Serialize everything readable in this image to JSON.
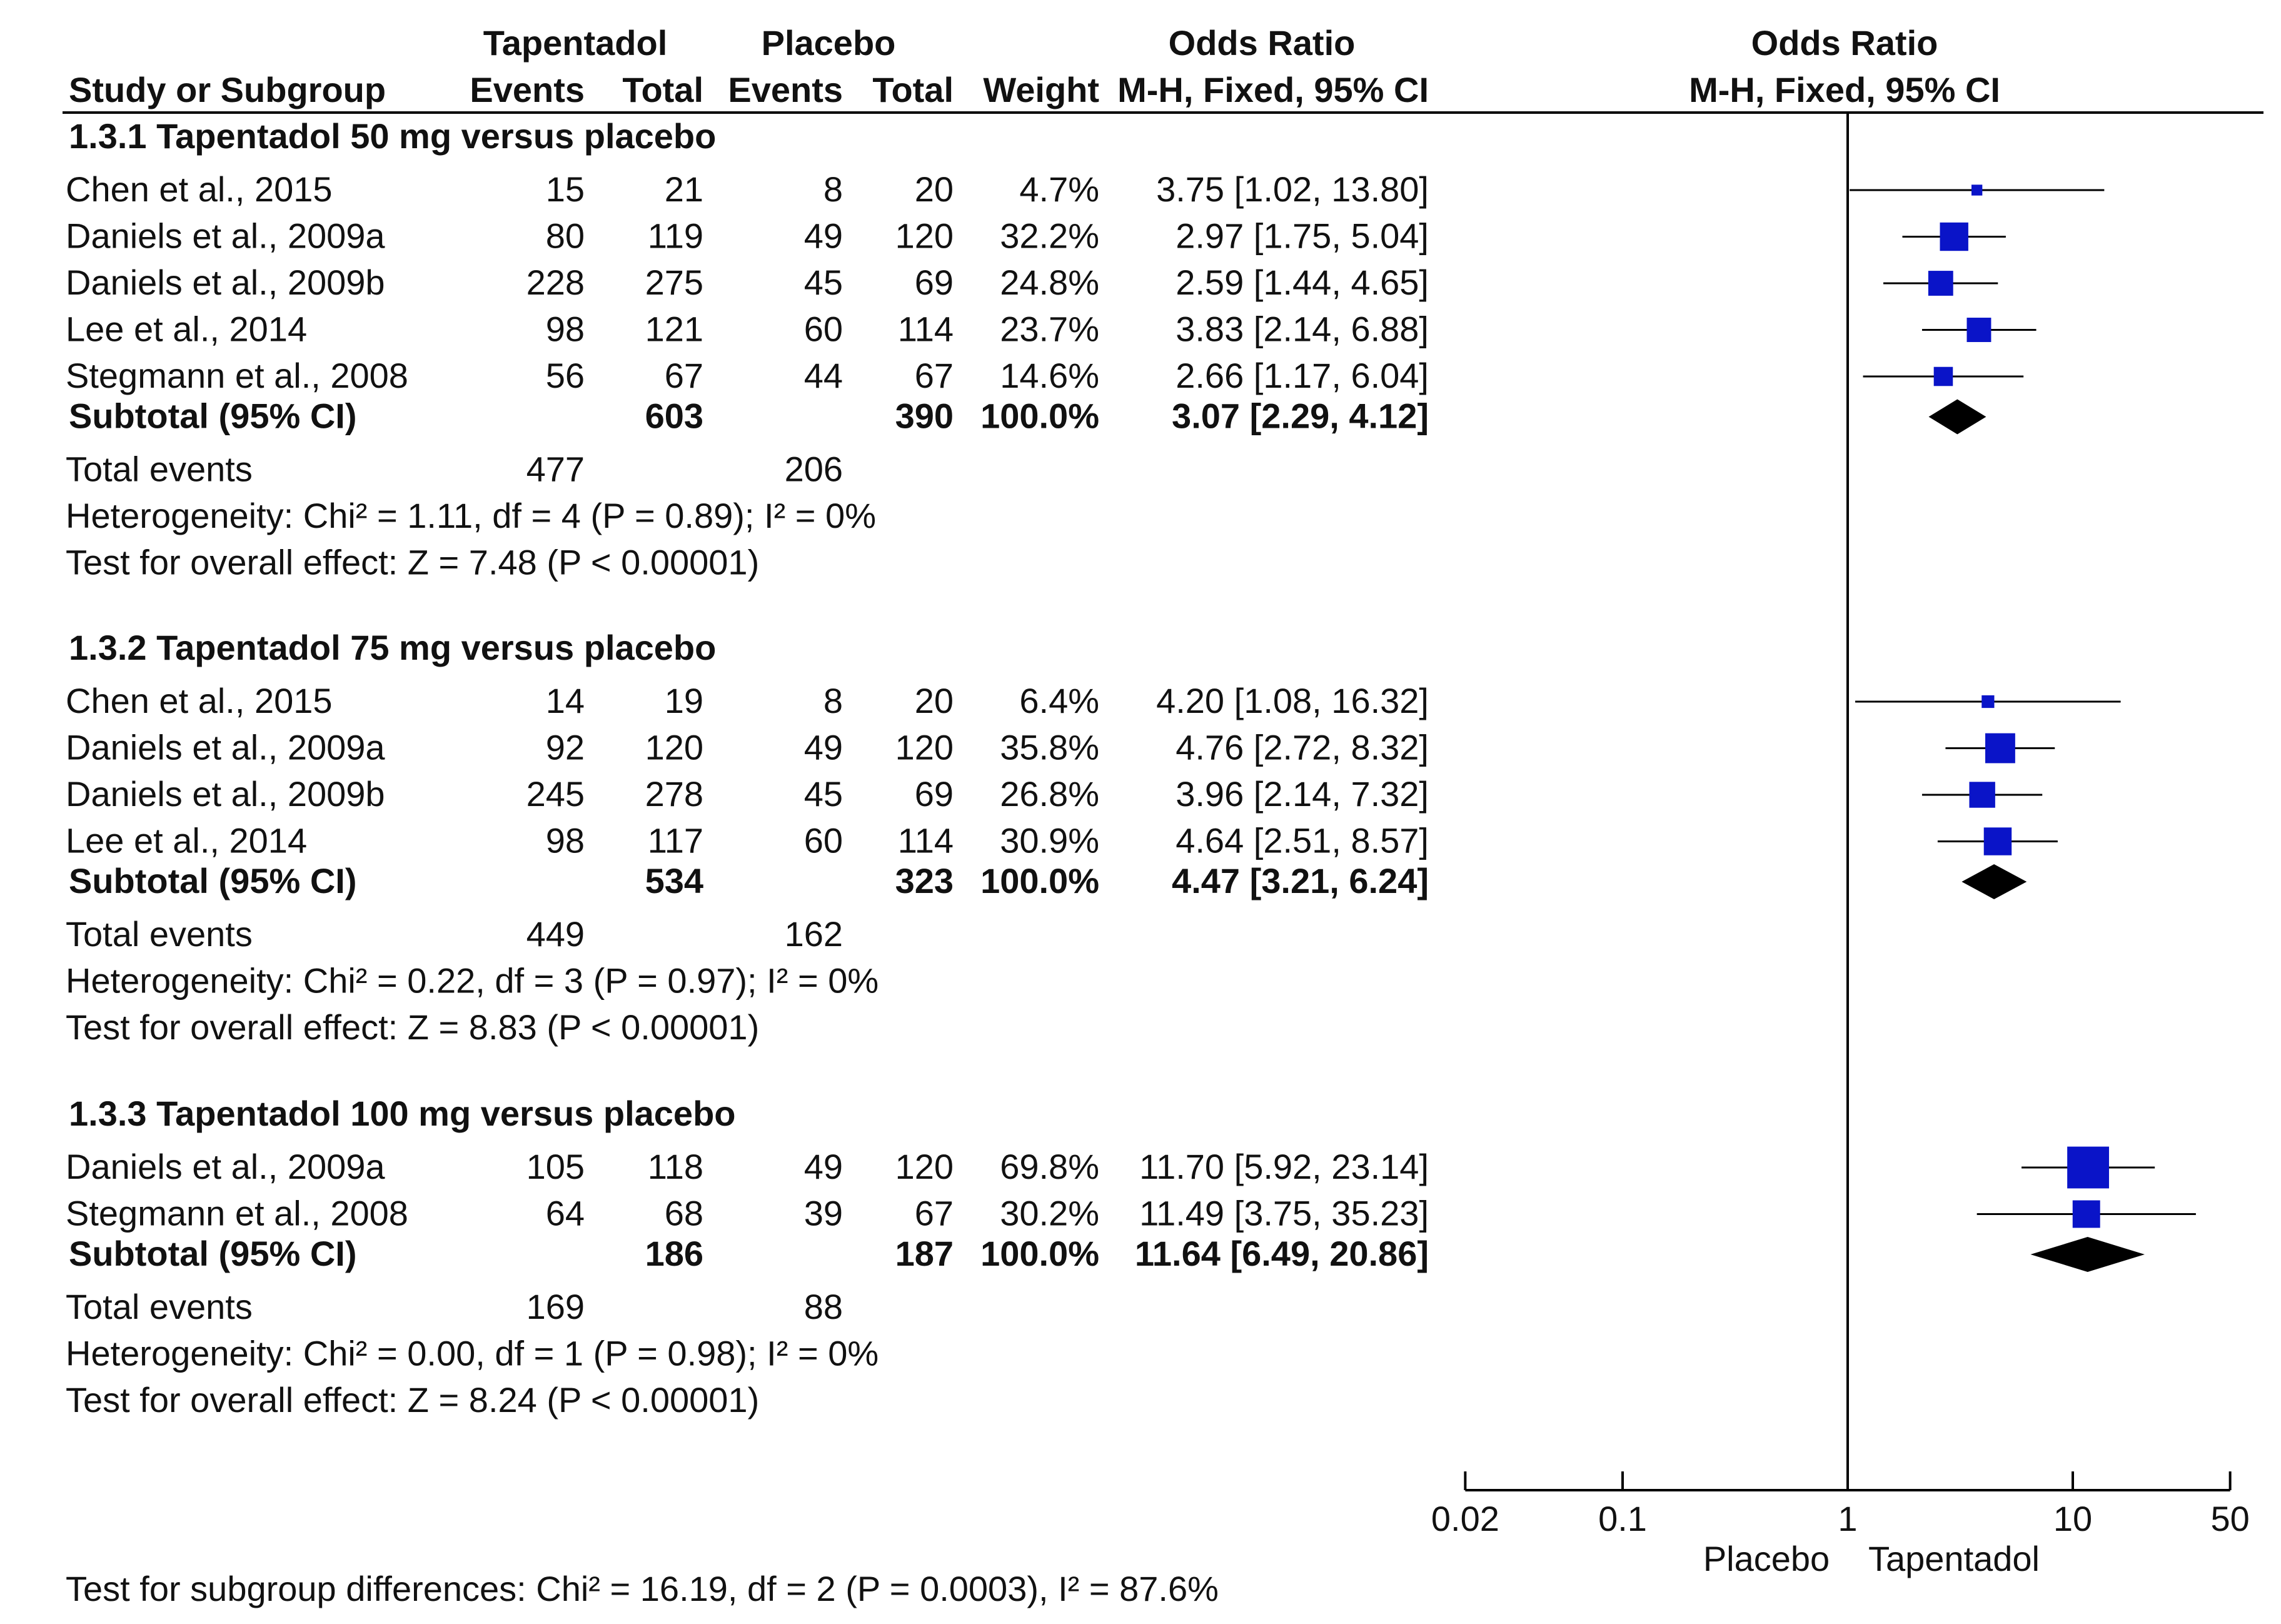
{
  "chart_data": {
    "type": "forest",
    "header": {
      "group1": "Tapentadol",
      "group2": "Placebo",
      "or_title": "Odds Ratio",
      "plot_title": "Odds Ratio",
      "study_col": "Study or Subgroup",
      "events1": "Events",
      "total1": "Total",
      "events2": "Events",
      "total2": "Total",
      "weight": "Weight",
      "method": "M-H, Fixed, 95% CI",
      "plot_method": "M-H, Fixed, 95% CI"
    },
    "subgroups": [
      {
        "title": "1.3.1 Tapentadol 50 mg versus placebo",
        "studies": [
          {
            "name": "Chen et al., 2015",
            "e1": "15",
            "n1": "21",
            "e2": "8",
            "n2": "20",
            "weight": "4.7%",
            "or_text": "3.75 [1.02, 13.80]",
            "or": 3.75,
            "lo": 1.02,
            "hi": 13.8,
            "w": 4.7
          },
          {
            "name": "Daniels et al., 2009a",
            "e1": "80",
            "n1": "119",
            "e2": "49",
            "n2": "120",
            "weight": "32.2%",
            "or_text": "2.97 [1.75, 5.04]",
            "or": 2.97,
            "lo": 1.75,
            "hi": 5.04,
            "w": 32.2
          },
          {
            "name": "Daniels et al., 2009b",
            "e1": "228",
            "n1": "275",
            "e2": "45",
            "n2": "69",
            "weight": "24.8%",
            "or_text": "2.59 [1.44, 4.65]",
            "or": 2.59,
            "lo": 1.44,
            "hi": 4.65,
            "w": 24.8
          },
          {
            "name": "Lee et al., 2014",
            "e1": "98",
            "n1": "121",
            "e2": "60",
            "n2": "114",
            "weight": "23.7%",
            "or_text": "3.83 [2.14, 6.88]",
            "or": 3.83,
            "lo": 2.14,
            "hi": 6.88,
            "w": 23.7
          },
          {
            "name": "Stegmann et al., 2008",
            "e1": "56",
            "n1": "67",
            "e2": "44",
            "n2": "67",
            "weight": "14.6%",
            "or_text": "2.66 [1.17, 6.04]",
            "or": 2.66,
            "lo": 1.17,
            "hi": 6.04,
            "w": 14.6
          }
        ],
        "subtotal": {
          "label": "Subtotal (95% CI)",
          "n1": "603",
          "n2": "390",
          "weight": "100.0%",
          "or_text": "3.07 [2.29, 4.12]",
          "or": 3.07,
          "lo": 2.29,
          "hi": 4.12
        },
        "total_events": {
          "label": "Total events",
          "e1": "477",
          "e2": "206"
        },
        "heterogeneity": "Heterogeneity: Chi² = 1.11, df = 4 (P = 0.89); I² = 0%",
        "overall": "Test for overall effect: Z = 7.48 (P < 0.00001)"
      },
      {
        "title": "1.3.2 Tapentadol 75 mg versus placebo",
        "studies": [
          {
            "name": "Chen et al., 2015",
            "e1": "14",
            "n1": "19",
            "e2": "8",
            "n2": "20",
            "weight": "6.4%",
            "or_text": "4.20 [1.08, 16.32]",
            "or": 4.2,
            "lo": 1.08,
            "hi": 16.32,
            "w": 6.4
          },
          {
            "name": "Daniels et al., 2009a",
            "e1": "92",
            "n1": "120",
            "e2": "49",
            "n2": "120",
            "weight": "35.8%",
            "or_text": "4.76 [2.72, 8.32]",
            "or": 4.76,
            "lo": 2.72,
            "hi": 8.32,
            "w": 35.8
          },
          {
            "name": "Daniels et al., 2009b",
            "e1": "245",
            "n1": "278",
            "e2": "45",
            "n2": "69",
            "weight": "26.8%",
            "or_text": "3.96 [2.14, 7.32]",
            "or": 3.96,
            "lo": 2.14,
            "hi": 7.32,
            "w": 26.8
          },
          {
            "name": "Lee et al., 2014",
            "e1": "98",
            "n1": "117",
            "e2": "60",
            "n2": "114",
            "weight": "30.9%",
            "or_text": "4.64 [2.51, 8.57]",
            "or": 4.64,
            "lo": 2.51,
            "hi": 8.57,
            "w": 30.9
          }
        ],
        "subtotal": {
          "label": "Subtotal (95% CI)",
          "n1": "534",
          "n2": "323",
          "weight": "100.0%",
          "or_text": "4.47 [3.21, 6.24]",
          "or": 4.47,
          "lo": 3.21,
          "hi": 6.24
        },
        "total_events": {
          "label": "Total events",
          "e1": "449",
          "e2": "162"
        },
        "heterogeneity": "Heterogeneity: Chi² = 0.22, df = 3 (P = 0.97); I² = 0%",
        "overall": "Test for overall effect: Z = 8.83 (P < 0.00001)"
      },
      {
        "title": "1.3.3 Tapentadol 100 mg versus placebo",
        "studies": [
          {
            "name": "Daniels et al., 2009a",
            "e1": "105",
            "n1": "118",
            "e2": "49",
            "n2": "120",
            "weight": "69.8%",
            "or_text": "11.70 [5.92, 23.14]",
            "or": 11.7,
            "lo": 5.92,
            "hi": 23.14,
            "w": 69.8
          },
          {
            "name": "Stegmann et al., 2008",
            "e1": "64",
            "n1": "68",
            "e2": "39",
            "n2": "67",
            "weight": "30.2%",
            "or_text": "11.49 [3.75, 35.23]",
            "or": 11.49,
            "lo": 3.75,
            "hi": 35.23,
            "w": 30.2
          }
        ],
        "subtotal": {
          "label": "Subtotal (95% CI)",
          "n1": "186",
          "n2": "187",
          "weight": "100.0%",
          "or_text": "11.64 [6.49, 20.86]",
          "or": 11.64,
          "lo": 6.49,
          "hi": 20.86
        },
        "total_events": {
          "label": "Total events",
          "e1": "169",
          "e2": "88"
        },
        "heterogeneity": "Heterogeneity: Chi² = 0.00, df = 1 (P = 0.98); I² = 0%",
        "overall": "Test for overall effect: Z = 8.24 (P < 0.00001)"
      }
    ],
    "x_axis": {
      "scale": "log",
      "xlim": [
        0.02,
        50
      ],
      "ticks": [
        0.02,
        0.1,
        1,
        10,
        50
      ],
      "tick_labels": [
        "0.02",
        "0.1",
        "1",
        "10",
        "50"
      ],
      "null_value": 1,
      "label_left": "Placebo",
      "label_right": "Tapentadol"
    },
    "subgroup_test": "Test for subgroup differences: Chi² = 16.19, df = 2 (P = 0.0003), I² = 87.6%",
    "colors": {
      "study_marker": "#0a14c8",
      "subtotal_diamond": "#000000",
      "lines": "#000000"
    }
  }
}
